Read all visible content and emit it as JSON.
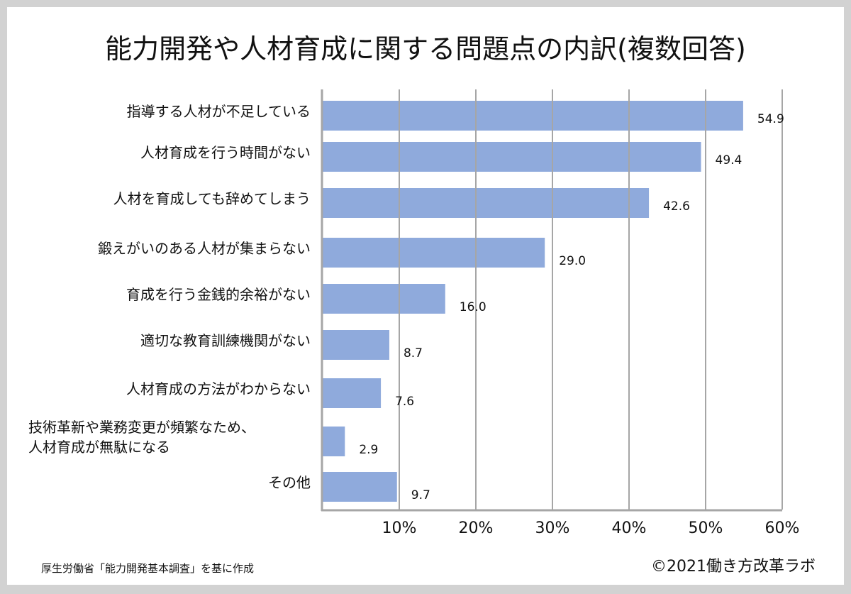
{
  "chart_data": {
    "type": "bar",
    "orientation": "horizontal",
    "title": "能力開発や人材育成に関する問題点の内訳(複数回答)",
    "categories": [
      "指導する人材が不足している",
      "人材育成を行う時間がない",
      "人材を育成しても辞めてしまう",
      "鍛えがいのある人材が集まらない",
      "育成を行う金銭的余裕がない",
      "適切な教育訓練機関がない",
      "人材育成の方法がわからない",
      "技術革新や業務変更が頻繁なため、\n人材育成が無駄になる",
      "その他"
    ],
    "values": [
      54.9,
      49.4,
      42.6,
      29.0,
      16.0,
      8.7,
      7.6,
      2.9,
      9.7
    ],
    "value_labels": [
      "54.9",
      "49.4",
      "42.6",
      "29.0",
      "16.0",
      "8.7",
      "7.6",
      "2.9",
      "9.7"
    ],
    "xlim": [
      0,
      60
    ],
    "xticks": [
      "10%",
      "20%",
      "30%",
      "40%",
      "50%",
      "60%"
    ],
    "grid": true,
    "bar_color": "#8faadc",
    "xlabel": "",
    "ylabel": ""
  },
  "footer": {
    "source": "厚生労働省「能力開発基本調査」を基に作成",
    "credit": "©2021働き方改革ラボ"
  }
}
